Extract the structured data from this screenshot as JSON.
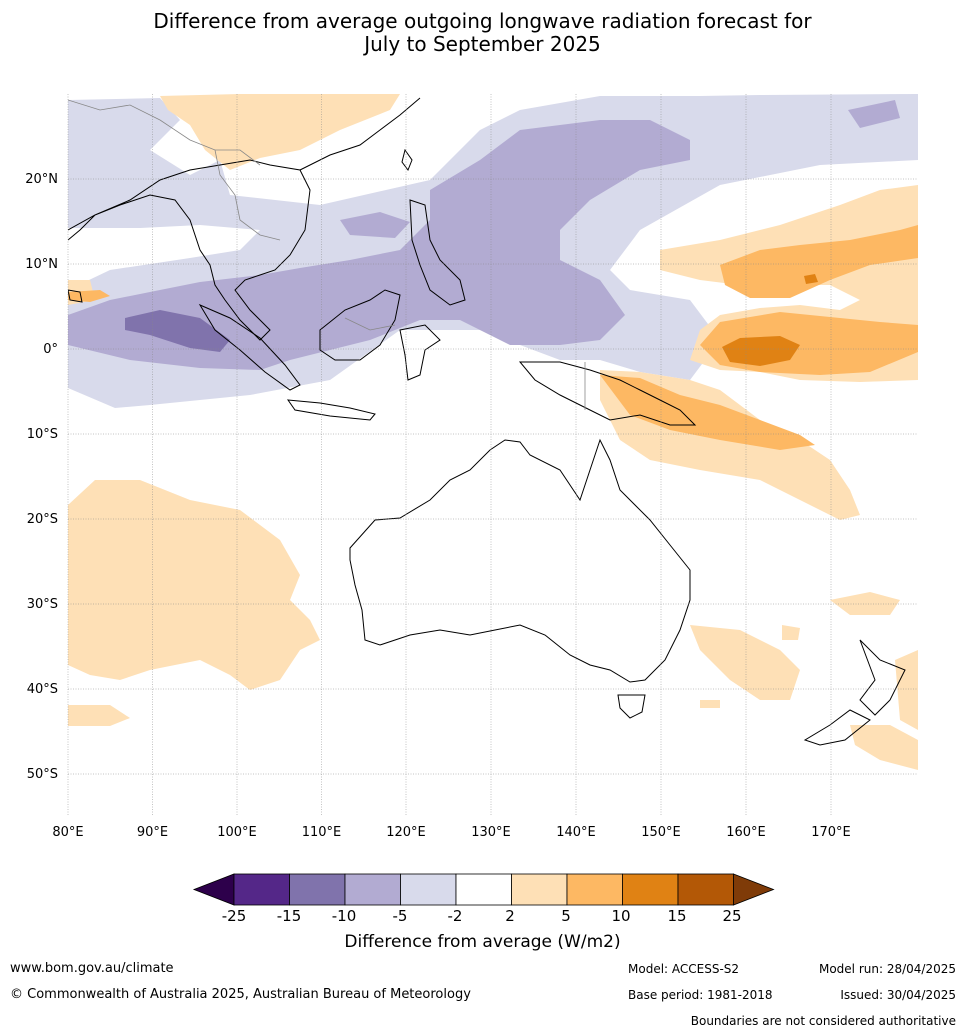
{
  "title_line1": "Difference from average outgoing longwave radiation forecast for",
  "title_line2": "July to September 2025",
  "lon_labels": [
    "80°E",
    "90°E",
    "100°E",
    "110°E",
    "120°E",
    "130°E",
    "140°E",
    "150°E",
    "160°E",
    "170°E"
  ],
  "lat_labels": [
    "20°N",
    "10°N",
    "0°",
    "10°S",
    "20°S",
    "30°S",
    "40°S",
    "50°S"
  ],
  "colorbar": {
    "ticks": [
      "-25",
      "-15",
      "-10",
      "-5",
      "-2",
      "2",
      "5",
      "10",
      "15",
      "25"
    ],
    "colors": [
      "#2d004b",
      "#542788",
      "#8073ac",
      "#b2abd2",
      "#d8daeb",
      "#ffffff",
      "#fee0b6",
      "#fdb863",
      "#e08214",
      "#b35806",
      "#7f3b08"
    ],
    "label": "Difference from average (W/m2)"
  },
  "footer": {
    "website": "www.bom.gov.au/climate",
    "copyright": "© Commonwealth of Australia 2025, Australian Bureau of Meteorology",
    "model": "Model: ACCESS-S2",
    "base_period": "Base period: 1981-2018",
    "model_run": "Model run: 28/04/2025",
    "issued": "Issued: 30/04/2025",
    "boundaries": "Boundaries are not considered authoritative"
  }
}
